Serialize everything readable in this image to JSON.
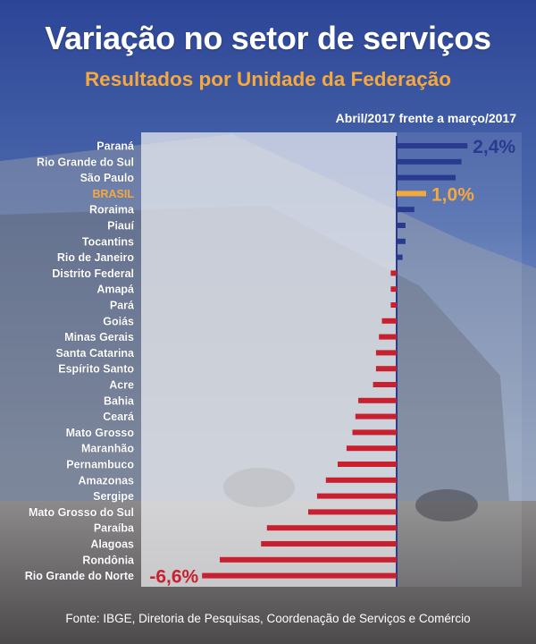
{
  "header": {
    "title": "Variação no setor de serviços",
    "subtitle": "Resultados por Unidade da Federação",
    "period": "Abril/2017 frente a março/2017"
  },
  "footer": {
    "source": "Fonte: IBGE, Diretoria de Pesquisas, Coordenação de Serviços e Comércio"
  },
  "colors": {
    "positive": "#283b8f",
    "negative": "#c8202f",
    "highlight": "#f4a93f",
    "background_top": "#2f4797",
    "background_bottom": "#9fb4d8"
  },
  "chart_data": {
    "type": "bar",
    "orientation": "horizontal",
    "title": "Variação no setor de serviços",
    "subtitle": "Resultados por Unidade da Federação",
    "unit": "%",
    "categories": [
      "Paraná",
      "Rio Grande do Sul",
      "São Paulo",
      "BRASIL",
      "Roraima",
      "Piauí",
      "Tocantins",
      "Rio de Janeiro",
      "Distrito Federal",
      "Amapá",
      "Pará",
      "Goiás",
      "Minas Gerais",
      "Santa Catarina",
      "Espírito Santo",
      "Acre",
      "Bahia",
      "Ceará",
      "Mato Grosso",
      "Maranhão",
      "Pernambuco",
      "Amazonas",
      "Sergipe",
      "Mato Grosso do Sul",
      "Paraíba",
      "Alagoas",
      "Rondônia",
      "Rio Grande do Norte"
    ],
    "values": [
      2.4,
      2.2,
      2.0,
      1.0,
      0.6,
      0.3,
      0.3,
      0.2,
      -0.2,
      -0.2,
      -0.2,
      -0.5,
      -0.6,
      -0.7,
      -0.7,
      -0.8,
      -1.3,
      -1.4,
      -1.5,
      -1.7,
      -2.0,
      -2.4,
      -2.7,
      -3.0,
      -4.4,
      -4.6,
      -6.0,
      -6.6
    ],
    "highlight": "BRASIL",
    "data_labels": [
      {
        "category": "Paraná",
        "text": "2,4%"
      },
      {
        "category": "BRASIL",
        "text": "1,0%"
      },
      {
        "category": "Rio Grande do Norte",
        "text": "-6,6%"
      }
    ],
    "xlim": [
      -6.6,
      2.4
    ]
  }
}
